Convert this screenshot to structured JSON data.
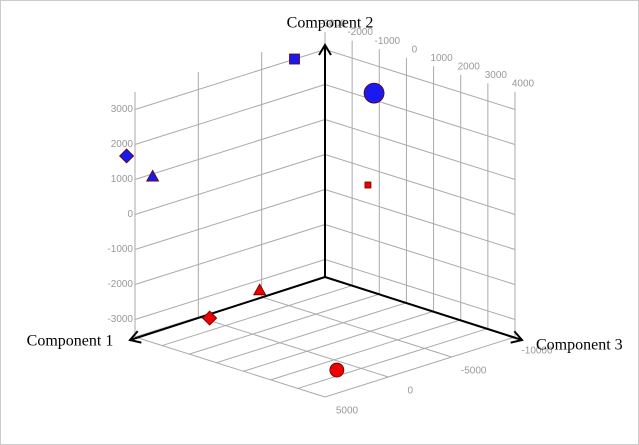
{
  "chart_data": {
    "type": "scatter3d",
    "x_label": "Component 1",
    "y_label": "Component 2",
    "z_label": "Component 3",
    "x": [
      1600,
      2750,
      -1200,
      5450,
      4250,
      -6950,
      -7360,
      -4820
    ],
    "y": [
      -3400,
      -2800,
      -2450,
      1700,
      1080,
      3150,
      2800,
      700
    ],
    "z": [
      2850,
      -1300,
      -1300,
      -3100,
      -2700,
      -2700,
      40,
      1000
    ],
    "colors": [
      "#ee0000",
      "#ee0000",
      "#ee0000",
      "#1a1aee",
      "#1a1aee",
      "#1a1aee",
      "#1a1aee",
      "#ee0000"
    ],
    "shapes": [
      "circle",
      "diamond",
      "triangle",
      "diamond",
      "triangle",
      "square",
      "circle",
      "square"
    ],
    "marker_sizes": [
      7,
      7,
      6,
      7,
      6,
      5,
      10,
      3
    ],
    "xlim": [
      -10000,
      5000
    ],
    "xticks": [
      -10000,
      -5000,
      0,
      5000
    ],
    "ylim": [
      -3500,
      3500
    ],
    "yticks": [
      -3000,
      -2000,
      -1000,
      0,
      1000,
      2000,
      3000
    ],
    "zlim": [
      -3000,
      4000
    ],
    "zticks": [
      -3000,
      -2000,
      -1000,
      0,
      1000,
      2000,
      3000,
      4000
    ],
    "grid": true
  }
}
